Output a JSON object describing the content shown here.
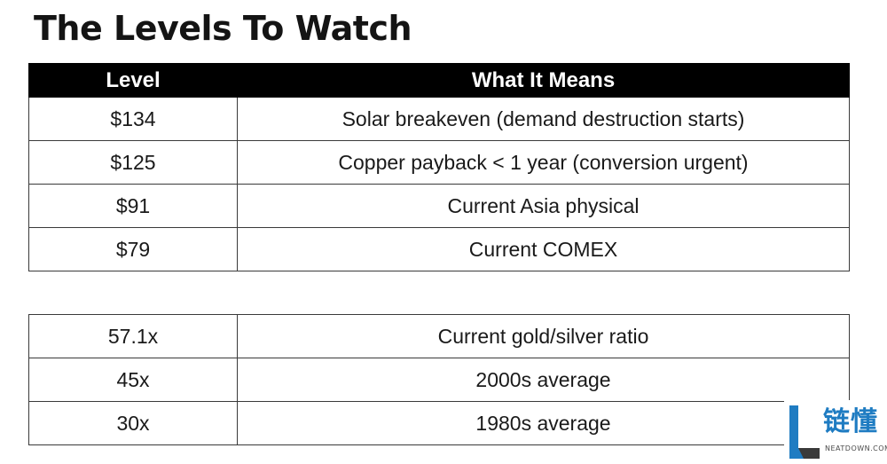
{
  "title": "The Levels To Watch",
  "table1": {
    "headers": [
      "Level",
      "What It Means"
    ],
    "rows": [
      [
        "$134",
        "Solar breakeven (demand destruction starts)"
      ],
      [
        "$125",
        "Copper payback < 1 year (conversion urgent)"
      ],
      [
        "$91",
        "Current Asia physical"
      ],
      [
        "$79",
        "Current COMEX"
      ]
    ]
  },
  "table2": {
    "rows": [
      [
        "57.1x",
        "Current gold/silver ratio"
      ],
      [
        "45x",
        "2000s average"
      ],
      [
        "30x",
        "1980s average"
      ]
    ]
  },
  "watermark": {
    "cn_text": "链懂",
    "en_text": "NEATDOWN.COM",
    "colors": {
      "blue": "#1f7cc2",
      "dark": "#3a3a3a"
    }
  }
}
